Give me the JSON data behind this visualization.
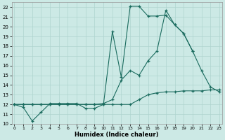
{
  "xlabel": "Humidex (Indice chaleur)",
  "xlim": [
    -0.3,
    23.3
  ],
  "ylim": [
    10,
    22.5
  ],
  "xticks": [
    0,
    1,
    2,
    3,
    4,
    5,
    6,
    7,
    8,
    9,
    10,
    11,
    12,
    13,
    14,
    15,
    16,
    17,
    18,
    19,
    20,
    21,
    22,
    23
  ],
  "yticks": [
    10,
    11,
    12,
    13,
    14,
    15,
    16,
    17,
    18,
    19,
    20,
    21,
    22
  ],
  "bg_color": "#cce9e5",
  "grid_color": "#afd4cf",
  "line_color": "#1a6b5e",
  "line1_x": [
    0,
    1,
    2,
    3,
    4,
    5,
    6,
    7,
    8,
    9,
    10,
    11,
    12,
    13,
    14,
    15,
    16,
    17,
    18,
    19,
    20
  ],
  "line1_y": [
    12.0,
    11.7,
    10.3,
    11.2,
    12.1,
    12.1,
    12.1,
    12.1,
    11.6,
    11.6,
    12.0,
    19.5,
    14.8,
    22.1,
    22.1,
    21.1,
    21.1,
    21.2,
    20.2,
    19.3,
    17.5
  ],
  "line2_x": [
    0,
    1,
    2,
    3,
    4,
    5,
    6,
    7,
    8,
    9,
    10,
    11,
    12,
    13,
    14,
    15,
    16,
    17,
    18,
    19,
    20,
    21,
    22,
    23
  ],
  "line2_y": [
    12.0,
    12.0,
    12.0,
    12.0,
    12.0,
    12.0,
    12.0,
    12.0,
    12.0,
    12.0,
    12.1,
    12.5,
    14.5,
    15.5,
    15.0,
    16.5,
    17.5,
    21.7,
    20.2,
    19.3,
    17.5,
    15.5,
    13.8,
    13.3
  ],
  "line3_x": [
    0,
    1,
    2,
    3,
    4,
    5,
    6,
    7,
    8,
    9,
    10,
    11,
    12,
    13,
    14,
    15,
    16,
    17,
    18,
    19,
    20,
    21,
    22,
    23
  ],
  "line3_y": [
    12.0,
    12.0,
    12.0,
    12.0,
    12.0,
    12.0,
    12.0,
    12.0,
    12.0,
    12.0,
    12.0,
    12.0,
    12.0,
    12.0,
    12.5,
    13.0,
    13.2,
    13.3,
    13.3,
    13.4,
    13.4,
    13.4,
    13.5,
    13.5
  ]
}
